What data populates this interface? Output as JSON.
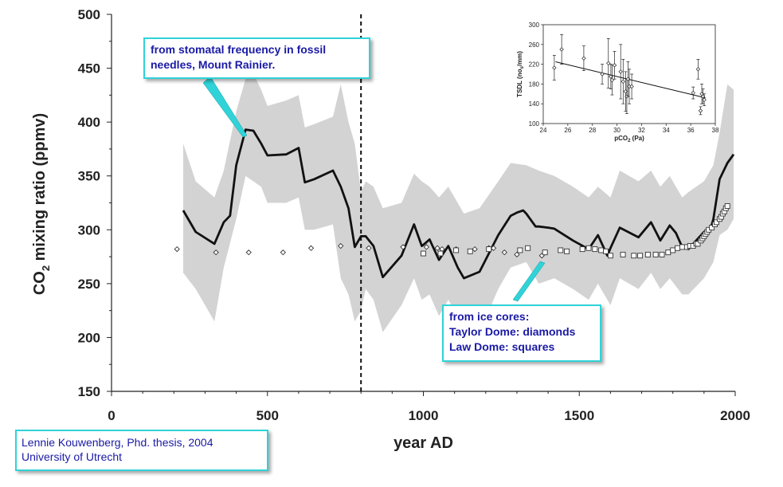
{
  "chart_data": [
    {
      "type": "line",
      "title": "",
      "xlabel": "year AD",
      "ylabel_main": "CO",
      "ylabel_sub": "2",
      "ylabel_rest": " mixing ratio (ppmv)",
      "xlim": [
        0,
        2000
      ],
      "ylim": [
        150,
        500
      ],
      "xticks": [
        0,
        500,
        1000,
        1500,
        2000
      ],
      "yticks": [
        150,
        200,
        250,
        300,
        350,
        400,
        450,
        500
      ],
      "grid": false,
      "vertical_marker_x": 800,
      "band_color": "#d3d3d3",
      "series": [
        {
          "x": [
            230,
            270,
            330,
            360,
            380,
            400,
            430,
            455,
            480,
            500,
            560,
            600,
            620,
            650,
            710,
            735,
            760,
            780,
            800,
            815,
            840,
            870,
            930,
            970,
            995,
            1000,
            1020,
            1050,
            1080,
            1110,
            1130,
            1180,
            1240,
            1280,
            1300,
            1320,
            1330,
            1360,
            1370,
            1400,
            1420,
            1480,
            1530,
            1560,
            1590,
            1600,
            1630,
            1690,
            1730,
            1760,
            1790,
            1810,
            1830,
            1850,
            1900,
            1920,
            1930,
            1950,
            1975,
            1995
          ],
          "y": [
            318,
            298,
            287,
            307,
            313,
            360,
            393,
            392,
            380,
            369,
            370,
            376,
            344,
            347,
            355,
            340,
            320,
            284,
            294,
            294,
            285,
            256,
            276,
            305,
            285,
            286,
            291,
            272,
            285,
            265,
            255,
            261,
            295,
            313,
            316,
            318,
            315,
            303,
            303,
            302,
            301,
            290,
            282,
            295,
            276,
            283,
            302,
            293,
            307,
            290,
            304,
            297,
            284,
            282,
            298,
            300,
            310,
            347,
            362,
            370
          ]
        },
        {
          "x": [
            230,
            270,
            330,
            360,
            400,
            430,
            455,
            480,
            500,
            560,
            600,
            620,
            650,
            710,
            735,
            760,
            780,
            800,
            815,
            840,
            870,
            930,
            970,
            995,
            1020,
            1050,
            1080,
            1130,
            1180,
            1240,
            1280,
            1330,
            1370,
            1420,
            1480,
            1530,
            1560,
            1600,
            1630,
            1690,
            1730,
            1760,
            1790,
            1830,
            1850,
            1900,
            1930,
            1950,
            1975,
            1995
          ],
          "y": [
            380,
            345,
            330,
            355,
            410,
            440,
            445,
            430,
            415,
            420,
            425,
            395,
            398,
            405,
            435,
            400,
            380,
            335,
            345,
            340,
            320,
            325,
            352,
            345,
            340,
            330,
            340,
            315,
            320,
            345,
            362,
            360,
            355,
            350,
            340,
            330,
            340,
            330,
            355,
            345,
            355,
            340,
            350,
            330,
            335,
            345,
            360,
            390,
            435,
            430
          ]
        },
        {
          "x": [
            230,
            270,
            330,
            360,
            400,
            430,
            455,
            480,
            500,
            560,
            600,
            620,
            650,
            710,
            735,
            760,
            780,
            800,
            815,
            840,
            870,
            930,
            970,
            995,
            1020,
            1050,
            1080,
            1130,
            1180,
            1240,
            1280,
            1330,
            1370,
            1420,
            1480,
            1530,
            1560,
            1600,
            1630,
            1690,
            1730,
            1760,
            1790,
            1830,
            1850,
            1900,
            1930,
            1950,
            1975,
            1995
          ],
          "y": [
            260,
            245,
            215,
            265,
            310,
            350,
            345,
            340,
            325,
            325,
            330,
            300,
            300,
            305,
            255,
            240,
            215,
            225,
            245,
            235,
            205,
            230,
            255,
            235,
            240,
            220,
            235,
            210,
            205,
            245,
            265,
            270,
            250,
            255,
            245,
            235,
            250,
            230,
            255,
            245,
            260,
            245,
            255,
            240,
            240,
            255,
            270,
            295,
            300,
            310
          ]
        },
        {
          "x": [
            210,
            335,
            440,
            550,
            640,
            735,
            825,
            935,
            1010,
            1045,
            1060,
            1105,
            1165,
            1210,
            1225,
            1260,
            1300,
            1380
          ],
          "y": [
            282,
            279,
            279,
            279,
            283,
            285,
            283,
            284,
            284,
            283,
            282,
            282,
            282,
            283,
            283,
            279,
            277,
            276
          ]
        },
        {
          "x": [
            1000,
            1055,
            1105,
            1150,
            1210,
            1310,
            1335,
            1390,
            1440,
            1460,
            1510,
            1530,
            1550,
            1570,
            1585,
            1600,
            1640,
            1675,
            1695,
            1720,
            1745,
            1765,
            1785,
            1800,
            1815,
            1830,
            1845,
            1855,
            1865,
            1875,
            1880,
            1890,
            1895,
            1900,
            1905,
            1910,
            1915,
            1925,
            1935,
            1940,
            1950,
            1955,
            1960,
            1965,
            1970,
            1975
          ],
          "y": [
            278,
            278,
            281,
            280,
            282,
            281,
            283,
            279,
            281,
            280,
            282,
            283,
            282,
            281,
            280,
            276,
            277,
            276,
            276,
            277,
            277,
            277,
            279,
            281,
            283,
            284,
            284,
            285,
            285,
            287,
            287,
            290,
            292,
            294,
            296,
            298,
            300,
            302,
            305,
            307,
            310,
            312,
            315,
            317,
            320,
            322
          ]
        }
      ]
    },
    {
      "type": "scatter",
      "title": "",
      "xlabel_main": "pCO",
      "xlabel_sub": "2",
      "xlabel_rest": " (Pa)",
      "ylabel_main": "TSDL (no",
      "ylabel_sub": "s",
      "ylabel_rest": "/mm)",
      "xlim": [
        24,
        38
      ],
      "ylim": [
        100,
        300
      ],
      "xticks": [
        24,
        26,
        28,
        30,
        32,
        34,
        36,
        38
      ],
      "yticks": [
        100,
        140,
        180,
        220,
        260,
        300
      ],
      "points": [
        {
          "x": 24.9,
          "y": 213,
          "err": 25
        },
        {
          "x": 25.5,
          "y": 250,
          "err": 30
        },
        {
          "x": 27.3,
          "y": 232,
          "err": 25
        },
        {
          "x": 28.8,
          "y": 200,
          "err": 20
        },
        {
          "x": 29.3,
          "y": 222,
          "err": 50
        },
        {
          "x": 29.5,
          "y": 195,
          "err": 25
        },
        {
          "x": 29.6,
          "y": 188,
          "err": 30
        },
        {
          "x": 29.8,
          "y": 218,
          "err": 28
        },
        {
          "x": 30.3,
          "y": 205,
          "err": 55
        },
        {
          "x": 30.5,
          "y": 185,
          "err": 45
        },
        {
          "x": 30.7,
          "y": 165,
          "err": 40
        },
        {
          "x": 30.8,
          "y": 155,
          "err": 35
        },
        {
          "x": 30.9,
          "y": 190,
          "err": 35
        },
        {
          "x": 31.0,
          "y": 175,
          "err": 35
        },
        {
          "x": 31.2,
          "y": 175,
          "err": 25
        },
        {
          "x": 36.2,
          "y": 162,
          "err": 12
        },
        {
          "x": 36.6,
          "y": 210,
          "err": 20
        },
        {
          "x": 36.8,
          "y": 126,
          "err": 8
        },
        {
          "x": 36.9,
          "y": 160,
          "err": 20
        },
        {
          "x": 37.0,
          "y": 155,
          "err": 15
        },
        {
          "x": 37.1,
          "y": 148,
          "err": 12
        }
      ],
      "fit": {
        "x": [
          25,
          37.2
        ],
        "y": [
          225,
          152
        ]
      }
    }
  ],
  "annotations": {
    "stomatal": [
      "from stomatal frequency in fossil",
      "needles, Mount Rainier."
    ],
    "ice": [
      "from ice cores:",
      "Taylor Dome: diamonds",
      "Law Dome: squares"
    ],
    "credit": [
      "Lennie Kouwenberg, Phd. thesis, 2004",
      "University of Utrecht"
    ]
  },
  "colors": {
    "accent": "#2fd3d8",
    "text": "#1a1aa6"
  }
}
